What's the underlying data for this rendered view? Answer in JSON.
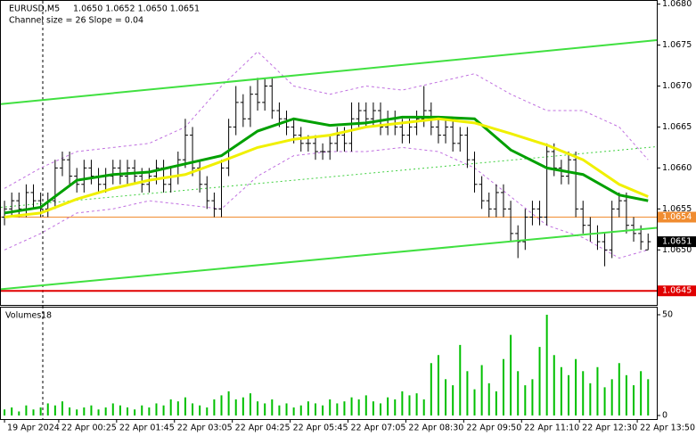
{
  "chart_data": {
    "type": "ohlc",
    "title": "EURUSD,M5",
    "quote": "1.0650 1.0652 1.0650 1.0651",
    "subtitle": "Channel size = 26 Slope = 0.04",
    "bar_color": "#000000",
    "xlim": [
      -0.5,
      90.2
    ],
    "xticks": [
      {
        "value": 0,
        "label": "19 Apr 2024"
      },
      {
        "value": 7.5,
        "label": "22 Apr 00:25"
      },
      {
        "value": 15.5,
        "label": "22 Apr 01:45"
      },
      {
        "value": 23.5,
        "label": "22 Apr 03:05"
      },
      {
        "value": 31.5,
        "label": "22 Apr 04:25"
      },
      {
        "value": 39.5,
        "label": "22 Apr 05:45"
      },
      {
        "value": 47.5,
        "label": "22 Apr 07:05"
      },
      {
        "value": 55.5,
        "label": "22 Apr 08:30"
      },
      {
        "value": 63.5,
        "label": "22 Apr 09:50"
      },
      {
        "value": 71.5,
        "label": "22 Apr 11:10"
      },
      {
        "value": 79.5,
        "label": "22 Apr 12:30"
      },
      {
        "value": 87.5,
        "label": "22 Apr 13:50"
      }
    ],
    "ylim": [
      1.06435,
      1.06805
    ],
    "yticks": [
      {
        "value": 1.068,
        "label": "1.0680"
      },
      {
        "value": 1.0675,
        "label": "1.0675"
      },
      {
        "value": 1.067,
        "label": "1.0670"
      },
      {
        "value": 1.0665,
        "label": "1.0665"
      },
      {
        "value": 1.066,
        "label": "1.0660"
      },
      {
        "value": 1.0655,
        "label": "1.0655"
      },
      {
        "value": 1.065,
        "label": "1.0650"
      }
    ],
    "open": [
      1.0654,
      1.0655,
      1.0656,
      1.0655,
      1.0657,
      1.0656,
      1.0655,
      1.0656,
      1.066,
      1.0661,
      1.0659,
      1.0658,
      1.066,
      1.0659,
      1.0658,
      1.0659,
      1.066,
      1.0659,
      1.066,
      1.0659,
      1.0658,
      1.0659,
      1.066,
      1.0658,
      1.0659,
      1.0661,
      1.0664,
      1.066,
      1.0658,
      1.0656,
      1.0655,
      1.066,
      1.0665,
      1.0668,
      1.0666,
      1.0669,
      1.0668,
      1.067,
      1.0667,
      1.0666,
      1.0665,
      1.0664,
      1.0663,
      1.0663,
      1.0662,
      1.0662,
      1.0663,
      1.0664,
      1.0663,
      1.0666,
      1.0667,
      1.0666,
      1.0667,
      1.0665,
      1.0666,
      1.0665,
      1.0664,
      1.0665,
      1.0666,
      1.0667,
      1.0665,
      1.0664,
      1.0665,
      1.0663,
      1.0664,
      1.0661,
      1.0658,
      1.0656,
      1.0655,
      1.0657,
      1.0655,
      1.0652,
      1.0651,
      1.0654,
      1.0655,
      1.0654,
      1.0662,
      1.066,
      1.0659,
      1.0661,
      1.0655,
      1.0653,
      1.0652,
      1.0651,
      1.065,
      1.0655,
      1.0656,
      1.0653,
      1.0652,
      1.065
    ],
    "high": [
      1.0656,
      1.0657,
      1.0657,
      1.0658,
      1.0658,
      1.0657,
      1.0657,
      1.0661,
      1.0662,
      1.0662,
      1.066,
      1.0661,
      1.0661,
      1.066,
      1.066,
      1.0661,
      1.0661,
      1.0661,
      1.0661,
      1.066,
      1.066,
      1.0661,
      1.0661,
      1.066,
      1.0662,
      1.0666,
      1.0665,
      1.0661,
      1.0659,
      1.0657,
      1.0661,
      1.0666,
      1.067,
      1.0669,
      1.067,
      1.0671,
      1.0671,
      1.0671,
      1.0668,
      1.0667,
      1.0666,
      1.0665,
      1.0664,
      1.0664,
      1.0663,
      1.0664,
      1.0665,
      1.0665,
      1.0668,
      1.0668,
      1.0668,
      1.0668,
      1.0668,
      1.0667,
      1.0667,
      1.0666,
      1.0666,
      1.0667,
      1.067,
      1.0668,
      1.0666,
      1.0666,
      1.0666,
      1.0665,
      1.0665,
      1.0662,
      1.0659,
      1.0657,
      1.0658,
      1.0658,
      1.0656,
      1.0653,
      1.0655,
      1.0656,
      1.0656,
      1.0663,
      1.0663,
      1.0661,
      1.0662,
      1.0662,
      1.0656,
      1.0654,
      1.0653,
      1.0652,
      1.0656,
      1.0657,
      1.0657,
      1.0654,
      1.0653,
      1.0652
    ],
    "low": [
      1.0653,
      1.0654,
      1.0654,
      1.0654,
      1.0655,
      1.0654,
      1.0654,
      1.0655,
      1.0659,
      1.0658,
      1.0657,
      1.0657,
      1.0658,
      1.0657,
      1.0657,
      1.0658,
      1.0658,
      1.0658,
      1.0658,
      1.0657,
      1.0657,
      1.0658,
      1.0657,
      1.0657,
      1.0658,
      1.066,
      1.0659,
      1.0657,
      1.0655,
      1.0654,
      1.0654,
      1.0659,
      1.0664,
      1.0665,
      1.0665,
      1.0667,
      1.0667,
      1.0666,
      1.0665,
      1.0664,
      1.0663,
      1.0662,
      1.0662,
      1.0661,
      1.0661,
      1.0661,
      1.0662,
      1.0662,
      1.0662,
      1.0665,
      1.0665,
      1.0665,
      1.0664,
      1.0664,
      1.0664,
      1.0663,
      1.0663,
      1.0664,
      1.0665,
      1.0664,
      1.0663,
      1.0663,
      1.0662,
      1.0662,
      1.066,
      1.0657,
      1.0655,
      1.0654,
      1.0654,
      1.0654,
      1.0651,
      1.0649,
      1.065,
      1.0653,
      1.0653,
      1.0653,
      1.0659,
      1.0658,
      1.0658,
      1.0654,
      1.0652,
      1.0651,
      1.065,
      1.0648,
      1.0649,
      1.0654,
      1.0652,
      1.0651,
      1.065,
      1.065
    ],
    "close": [
      1.0655,
      1.0656,
      1.0655,
      1.0657,
      1.0656,
      1.0655,
      1.0656,
      1.066,
      1.0661,
      1.0659,
      1.0658,
      1.066,
      1.0659,
      1.0658,
      1.0659,
      1.066,
      1.0659,
      1.066,
      1.0659,
      1.0658,
      1.0659,
      1.066,
      1.0658,
      1.0659,
      1.0661,
      1.0664,
      1.066,
      1.0658,
      1.0656,
      1.0655,
      1.066,
      1.0665,
      1.0668,
      1.0666,
      1.0669,
      1.0668,
      1.067,
      1.0667,
      1.0666,
      1.0665,
      1.0664,
      1.0663,
      1.0663,
      1.0662,
      1.0662,
      1.0663,
      1.0664,
      1.0663,
      1.0666,
      1.0667,
      1.0666,
      1.0667,
      1.0665,
      1.0666,
      1.0665,
      1.0664,
      1.0665,
      1.0666,
      1.0667,
      1.0665,
      1.0664,
      1.0665,
      1.0663,
      1.0664,
      1.0661,
      1.0658,
      1.0656,
      1.0655,
      1.0657,
      1.0655,
      1.0652,
      1.0651,
      1.0654,
      1.0655,
      1.0654,
      1.0662,
      1.066,
      1.0659,
      1.0661,
      1.0655,
      1.0653,
      1.0652,
      1.0651,
      1.065,
      1.0655,
      1.0656,
      1.0653,
      1.0652,
      1.0651,
      1.0651
    ],
    "lines": [
      {
        "color": "#00a000",
        "width": 3,
        "x": [
          0,
          5,
          10,
          15,
          20,
          25,
          30,
          35,
          40,
          45,
          50,
          55,
          60,
          65,
          70,
          75,
          80,
          85,
          89
        ],
        "values": [
          1.06545,
          1.06552,
          1.06585,
          1.06592,
          1.06595,
          1.06605,
          1.06615,
          1.06645,
          1.0666,
          1.06652,
          1.06655,
          1.06662,
          1.06662,
          1.0666,
          1.06622,
          1.066,
          1.06592,
          1.06567,
          1.0656
        ]
      },
      {
        "color": "#f0f000",
        "width": 3,
        "x": [
          0,
          5,
          10,
          15,
          20,
          25,
          30,
          35,
          40,
          45,
          50,
          55,
          60,
          65,
          70,
          75,
          80,
          85,
          89
        ],
        "values": [
          1.0654,
          1.06545,
          1.06562,
          1.06575,
          1.06585,
          1.06592,
          1.06608,
          1.06625,
          1.06635,
          1.0664,
          1.0665,
          1.06655,
          1.0666,
          1.06655,
          1.06642,
          1.06628,
          1.0661,
          1.0658,
          1.06565
        ]
      },
      {
        "color": "#c070e0",
        "width": 1,
        "dash": "3,3",
        "x": [
          0,
          5,
          10,
          15,
          20,
          25,
          30,
          35,
          40,
          45,
          50,
          55,
          60,
          65,
          70,
          75,
          80,
          85,
          89
        ],
        "values": [
          1.06575,
          1.066,
          1.0662,
          1.06625,
          1.0663,
          1.0665,
          1.067,
          1.06742,
          1.067,
          1.0669,
          1.067,
          1.06695,
          1.06705,
          1.06715,
          1.0669,
          1.0667,
          1.0667,
          1.0665,
          1.0661
        ]
      },
      {
        "color": "#c070e0",
        "width": 1,
        "dash": "3,3",
        "x": [
          0,
          5,
          10,
          15,
          20,
          25,
          30,
          35,
          40,
          45,
          50,
          55,
          60,
          65,
          70,
          75,
          80,
          85,
          89
        ],
        "values": [
          1.065,
          1.0652,
          1.06545,
          1.0655,
          1.0656,
          1.06555,
          1.0655,
          1.0659,
          1.06615,
          1.0662,
          1.0662,
          1.06625,
          1.0662,
          1.066,
          1.06565,
          1.0653,
          1.06515,
          1.0649,
          1.065
        ]
      },
      {
        "color": "#40e040",
        "width": 2,
        "x": [
          -0.5,
          90.2
        ],
        "values": [
          1.06678,
          1.06756
        ]
      },
      {
        "color": "#40e040",
        "width": 2,
        "x": [
          -0.5,
          90.2
        ],
        "values": [
          1.06452,
          1.06527
        ]
      },
      {
        "color": "#40d040",
        "width": 1,
        "dash": "2,3",
        "x": [
          -0.5,
          90.2
        ],
        "values": [
          1.06552,
          1.06626
        ]
      }
    ],
    "levels": [
      {
        "value": 1.0654,
        "label": "1.0654",
        "color": "#f08c30"
      },
      {
        "value": 1.0645,
        "label": "1.0645",
        "color": "#e00000"
      }
    ],
    "current_price": {
      "value": 1.0651,
      "label": "1.0651",
      "color": "#000000"
    },
    "volume": {
      "title": "Volumes",
      "color": "#00c000",
      "ylim": [
        0,
        50
      ],
      "yticks": [
        0,
        50
      ],
      "values": [
        3,
        4,
        2,
        5,
        3,
        4,
        6,
        5,
        7,
        4,
        3,
        4,
        5,
        3,
        4,
        6,
        5,
        4,
        3,
        5,
        4,
        6,
        5,
        8,
        7,
        9,
        6,
        5,
        4,
        8,
        10,
        12,
        8,
        9,
        11,
        7,
        6,
        8,
        5,
        6,
        4,
        5,
        7,
        6,
        5,
        8,
        6,
        7,
        9,
        8,
        10,
        7,
        6,
        9,
        8,
        12,
        10,
        11,
        8,
        26,
        30,
        18,
        15,
        35,
        22,
        13,
        25,
        16,
        12,
        28,
        40,
        22,
        15,
        18,
        34,
        50,
        30,
        24,
        20,
        28,
        22,
        16,
        24,
        14,
        18,
        26,
        20,
        15,
        22,
        18
      ]
    }
  }
}
